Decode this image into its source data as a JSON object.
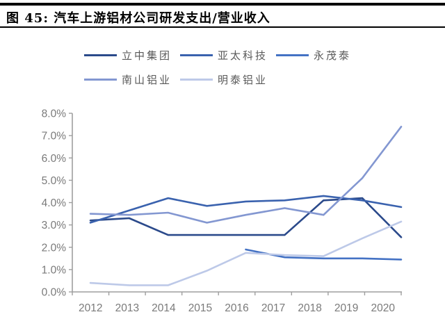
{
  "figure": {
    "title": "图 45:  汽车上游铝材公司研发支出/营业收入"
  },
  "chart_data": {
    "type": "line",
    "title": "汽车上游铝材公司研发支出/营业收入",
    "xlabel": "",
    "ylabel": "",
    "categories": [
      "2012",
      "2013",
      "2014",
      "2015",
      "2016",
      "2017",
      "2018",
      "2019",
      "2020"
    ],
    "series": [
      {
        "name": "立中集团",
        "color": "#2B4A8B",
        "values": [
          3.2,
          3.3,
          2.55,
          2.55,
          2.55,
          2.55,
          4.1,
          4.2,
          2.45
        ]
      },
      {
        "name": "亚太科技",
        "color": "#3A62AE",
        "values": [
          3.1,
          3.65,
          4.2,
          3.85,
          4.05,
          4.1,
          4.3,
          4.1,
          3.8
        ]
      },
      {
        "name": "永茂泰",
        "color": "#4472C4",
        "values": [
          null,
          null,
          null,
          null,
          1.9,
          1.55,
          1.5,
          1.5,
          1.45
        ]
      },
      {
        "name": "南山铝业",
        "color": "#8397D1",
        "values": [
          3.5,
          3.45,
          3.55,
          3.1,
          3.45,
          3.75,
          3.45,
          5.1,
          7.4
        ]
      },
      {
        "name": "明泰铝业",
        "color": "#BDC9E8",
        "values": [
          0.4,
          0.3,
          0.3,
          0.95,
          1.75,
          1.65,
          1.6,
          2.4,
          3.15
        ]
      }
    ],
    "ylim": [
      0,
      8
    ],
    "ytick_step": 1,
    "yticks": [
      "8.0%",
      "7.0%",
      "6.0%",
      "5.0%",
      "4.0%",
      "3.0%",
      "2.0%",
      "1.0%",
      "0.0%"
    ],
    "grid": false,
    "legend_position": "top-left",
    "axis_color": "#9E9E9E",
    "tick_label_color": "#7A7A7A"
  }
}
